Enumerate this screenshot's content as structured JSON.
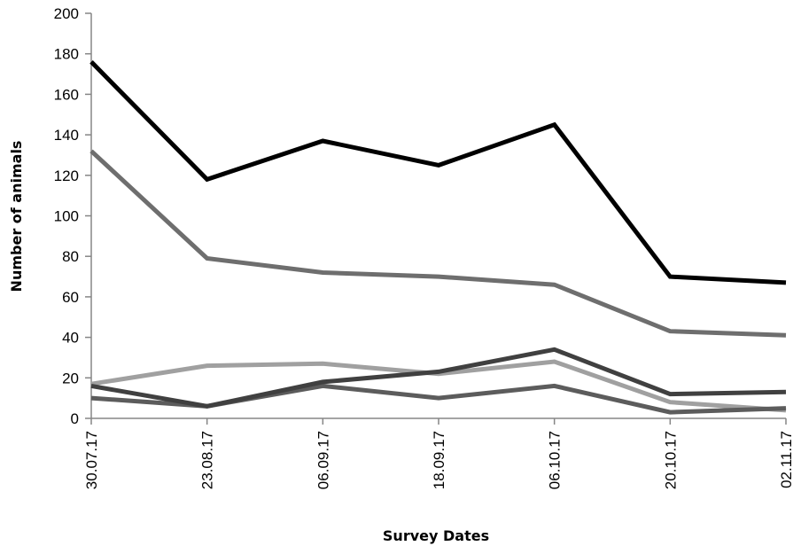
{
  "chart_data": {
    "type": "line",
    "title": "",
    "xlabel": "Survey Dates",
    "ylabel": "Number of animals",
    "categories": [
      "30.07.17",
      "23.08.17",
      "06.09.17",
      "18.09.17",
      "06.10.17",
      "20.10.17",
      "02.11.17"
    ],
    "ylim": [
      0,
      200
    ],
    "yticks": [
      0,
      20,
      40,
      60,
      80,
      100,
      120,
      140,
      160,
      180,
      200
    ],
    "grid": false,
    "legend": "none",
    "series": [
      {
        "color": "#000000",
        "values": [
          176,
          118,
          137,
          125,
          145,
          70,
          67
        ]
      },
      {
        "color": "#6e6e6e",
        "values": [
          132,
          79,
          72,
          70,
          66,
          43,
          41
        ]
      },
      {
        "color": "#a0a0a0",
        "values": [
          17,
          26,
          27,
          22,
          28,
          8,
          4
        ]
      },
      {
        "color": "#404040",
        "values": [
          16,
          6,
          18,
          23,
          34,
          12,
          13
        ]
      },
      {
        "color": "#5c5c5c",
        "values": [
          10,
          6,
          16,
          10,
          16,
          3,
          5
        ]
      }
    ]
  }
}
